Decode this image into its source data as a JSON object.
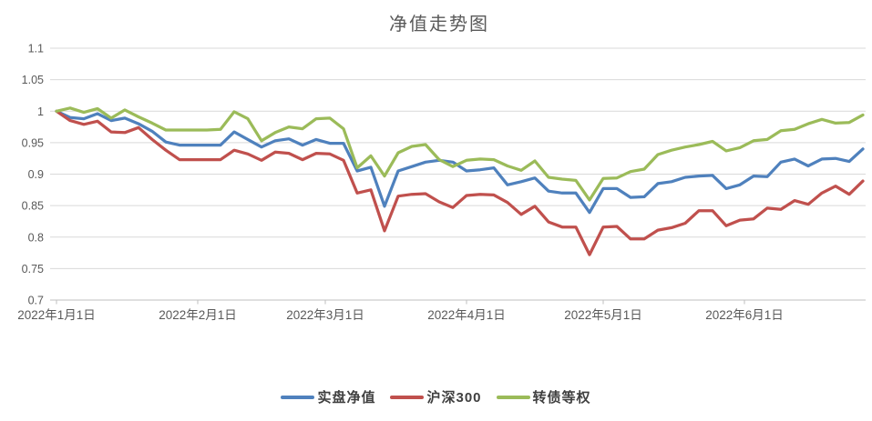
{
  "chart_data": {
    "type": "line",
    "title": "净值走势图",
    "categories": [
      "2022-01-01",
      "2022-01-04",
      "2022-01-07",
      "2022-01-10",
      "2022-01-13",
      "2022-01-16",
      "2022-01-19",
      "2022-01-22",
      "2022-01-25",
      "2022-01-28",
      "2022-01-31",
      "2022-02-03",
      "2022-02-06",
      "2022-02-09",
      "2022-02-12",
      "2022-02-15",
      "2022-02-18",
      "2022-02-21",
      "2022-02-24",
      "2022-02-27",
      "2022-03-02",
      "2022-03-05",
      "2022-03-08",
      "2022-03-11",
      "2022-03-14",
      "2022-03-17",
      "2022-03-20",
      "2022-03-23",
      "2022-03-26",
      "2022-03-29",
      "2022-04-01",
      "2022-04-04",
      "2022-04-07",
      "2022-04-10",
      "2022-04-13",
      "2022-04-16",
      "2022-04-19",
      "2022-04-22",
      "2022-04-25",
      "2022-04-28",
      "2022-05-01",
      "2022-05-04",
      "2022-05-07",
      "2022-05-10",
      "2022-05-13",
      "2022-05-16",
      "2022-05-19",
      "2022-05-22",
      "2022-05-25",
      "2022-05-28",
      "2022-05-31",
      "2022-06-03",
      "2022-06-06",
      "2022-06-09",
      "2022-06-12",
      "2022-06-15",
      "2022-06-18",
      "2022-06-21",
      "2022-06-24",
      "2022-06-27"
    ],
    "series": [
      {
        "name": "实盘净值",
        "color": "#4F81BD",
        "values": [
          1.0,
          0.99,
          0.988,
          0.996,
          0.985,
          0.989,
          0.98,
          0.968,
          0.951,
          0.946,
          0.946,
          0.946,
          0.946,
          0.967,
          0.955,
          0.943,
          0.953,
          0.956,
          0.946,
          0.955,
          0.949,
          0.949,
          0.905,
          0.911,
          0.849,
          0.905,
          0.912,
          0.919,
          0.922,
          0.919,
          0.905,
          0.907,
          0.91,
          0.883,
          0.888,
          0.894,
          0.873,
          0.87,
          0.87,
          0.839,
          0.877,
          0.877,
          0.863,
          0.864,
          0.885,
          0.888,
          0.895,
          0.897,
          0.898,
          0.877,
          0.883,
          0.897,
          0.896,
          0.919,
          0.924,
          0.913,
          0.924,
          0.925,
          0.92,
          0.94
        ]
      },
      {
        "name": "沪深300",
        "color": "#C0504D",
        "values": [
          1.0,
          0.985,
          0.979,
          0.984,
          0.967,
          0.966,
          0.974,
          0.955,
          0.938,
          0.923,
          0.923,
          0.923,
          0.923,
          0.938,
          0.932,
          0.922,
          0.935,
          0.933,
          0.923,
          0.933,
          0.932,
          0.922,
          0.87,
          0.875,
          0.81,
          0.865,
          0.868,
          0.869,
          0.856,
          0.847,
          0.866,
          0.868,
          0.867,
          0.855,
          0.836,
          0.849,
          0.824,
          0.816,
          0.816,
          0.772,
          0.816,
          0.817,
          0.797,
          0.797,
          0.811,
          0.815,
          0.822,
          0.842,
          0.842,
          0.818,
          0.827,
          0.829,
          0.846,
          0.844,
          0.858,
          0.852,
          0.87,
          0.881,
          0.868,
          0.889
        ]
      },
      {
        "name": "转债等权",
        "color": "#9BBB59",
        "values": [
          1.0,
          1.005,
          0.998,
          1.004,
          0.989,
          1.002,
          0.991,
          0.981,
          0.97,
          0.97,
          0.97,
          0.97,
          0.971,
          0.999,
          0.988,
          0.953,
          0.966,
          0.975,
          0.972,
          0.988,
          0.989,
          0.972,
          0.91,
          0.929,
          0.897,
          0.934,
          0.944,
          0.947,
          0.923,
          0.912,
          0.922,
          0.924,
          0.923,
          0.913,
          0.906,
          0.921,
          0.895,
          0.892,
          0.89,
          0.859,
          0.893,
          0.894,
          0.904,
          0.908,
          0.931,
          0.938,
          0.943,
          0.947,
          0.952,
          0.937,
          0.942,
          0.953,
          0.955,
          0.969,
          0.971,
          0.98,
          0.987,
          0.981,
          0.982,
          0.994
        ]
      }
    ],
    "ylim": [
      0.7,
      1.1
    ],
    "y_ticks": [
      1.1,
      1.05,
      1.0,
      0.95,
      0.9,
      0.85,
      0.8,
      0.75,
      0.7
    ],
    "y_tick_labels": [
      "1.1",
      "1.05",
      "1",
      "0.95",
      "0.9",
      "0.85",
      "0.8",
      "0.75",
      "0.7"
    ],
    "x_tick_labels": [
      "2022年1月1日",
      "2022年2月1日",
      "2022年3月1日",
      "2022年4月1日",
      "2022年5月1日",
      "2022年6月1日"
    ],
    "grid": true,
    "legend_position": "bottom",
    "colors": {
      "grid": "#D9D9D9",
      "axis": "#BFBFBF",
      "text": "#595959",
      "legend_text": "#3F3F3F"
    }
  }
}
